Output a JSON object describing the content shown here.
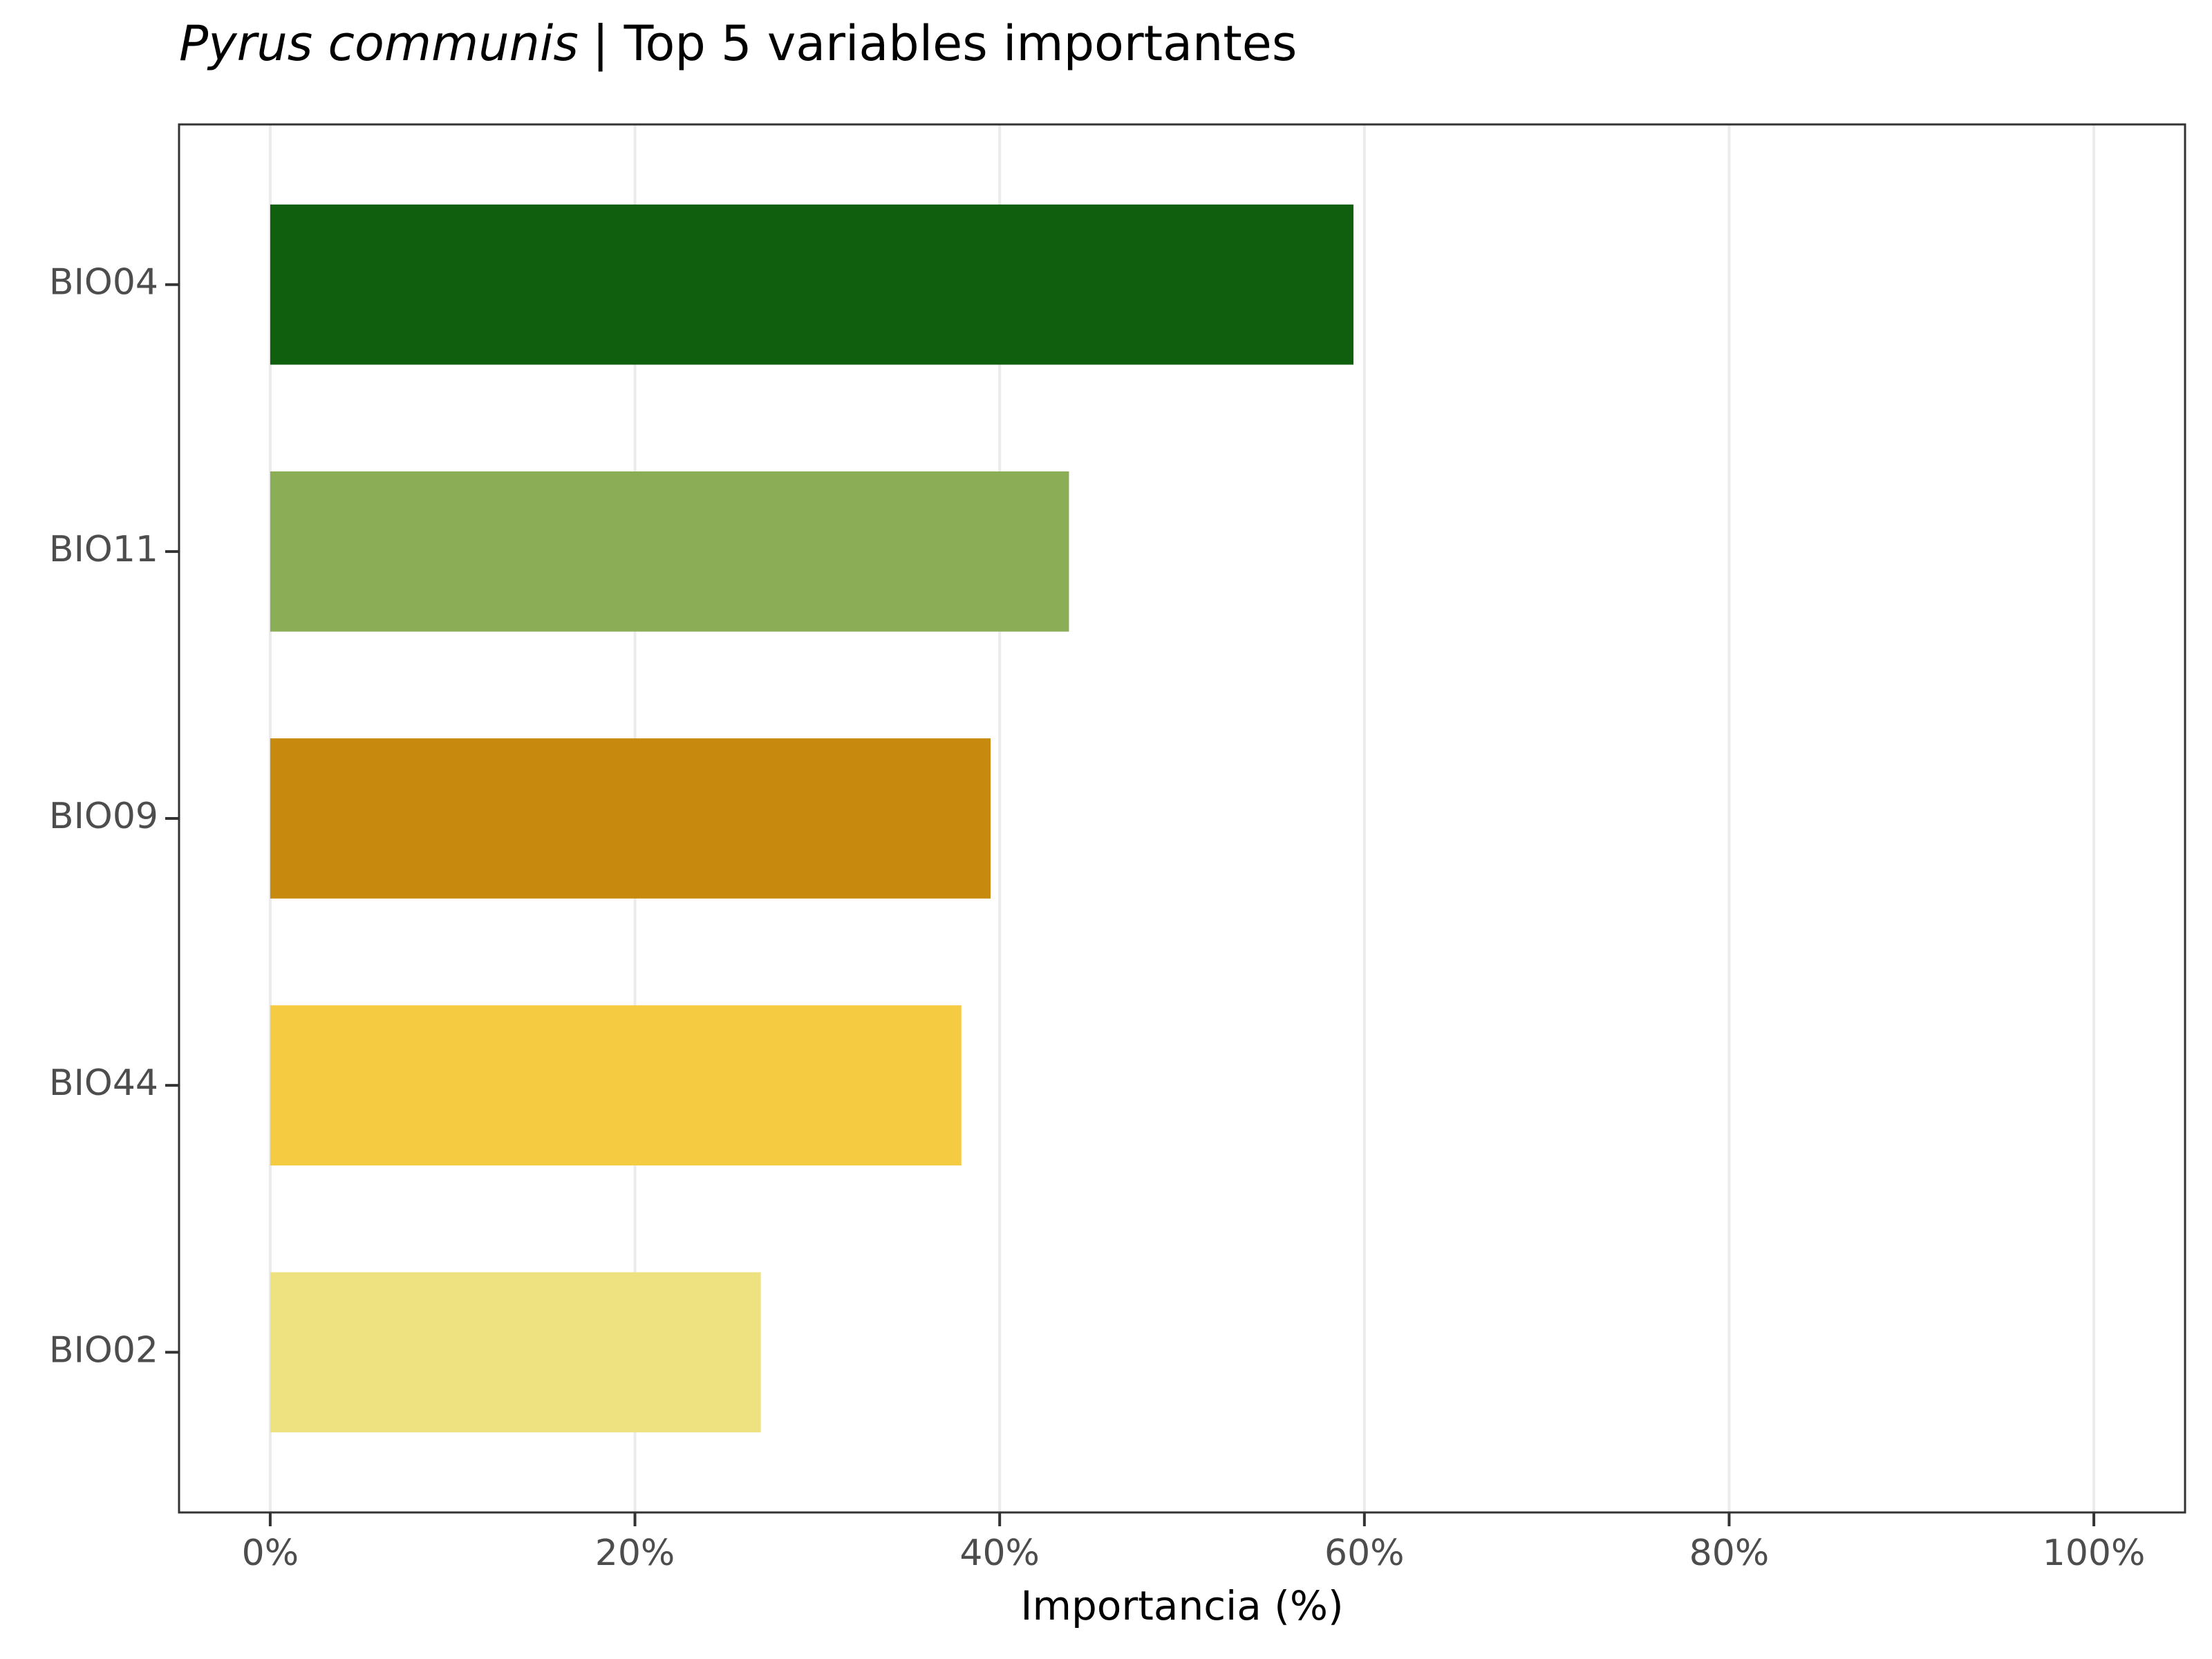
{
  "chart_data": {
    "type": "bar",
    "orientation": "horizontal",
    "title": {
      "species": "Pyrus communis",
      "text": "| Top 5 variables importantes"
    },
    "x_label": "Importancia (%)",
    "categories": [
      "BIO04",
      "BIO11",
      "BIO09",
      "BIO44",
      "BIO02"
    ],
    "values": [
      59.4,
      43.8,
      39.5,
      37.9,
      26.9
    ],
    "colors": [
      "#0f5f0f",
      "#8aad55",
      "#c88a0e",
      "#f5cb42",
      "#ede27f"
    ],
    "xlim": [
      -5,
      105
    ],
    "xticks": [
      {
        "value": 0,
        "label": "0%"
      },
      {
        "value": 20,
        "label": "20%"
      },
      {
        "value": 40,
        "label": "40%"
      },
      {
        "value": 60,
        "label": "60%"
      },
      {
        "value": 80,
        "label": "80%"
      },
      {
        "value": 100,
        "label": "100%"
      }
    ],
    "grid": true
  }
}
